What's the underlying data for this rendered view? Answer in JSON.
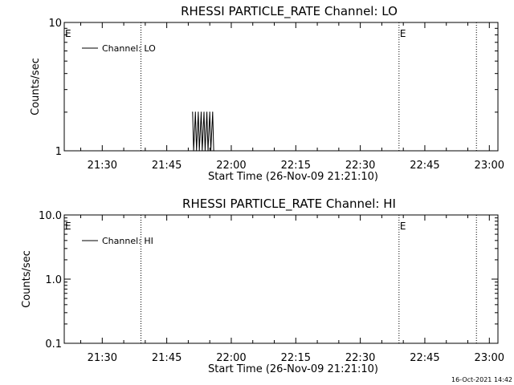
{
  "chart_data": [
    {
      "type": "line",
      "title": "RHESSI PARTICLE_RATE Channel: LO",
      "xlabel": "Start Time (26-Nov-09 21:21:10)",
      "ylabel": "Counts/sec",
      "yscale": "log",
      "ylim": [
        1,
        10
      ],
      "ytick_labels": [
        "10",
        "1"
      ],
      "xlim": [
        "21:21:10",
        "23:02:00"
      ],
      "xtick_labels": [
        "21:30",
        "21:45",
        "22:00",
        "22:15",
        "22:30",
        "22:45",
        "23:00"
      ],
      "legend": {
        "label": "Channel: LO",
        "position": "top-left"
      },
      "event_lines": [
        "21:39",
        "22:39",
        "22:57"
      ],
      "event_markers": [
        {
          "label": "E",
          "time": "21:21:10"
        },
        {
          "label": "E",
          "time": "22:39"
        }
      ],
      "series": [
        {
          "name": "Channel: LO",
          "x": [
            "21:51:00",
            "21:51:15",
            "21:51:40",
            "21:51:55",
            "21:52:20",
            "21:52:35",
            "21:53:00",
            "21:53:15",
            "21:53:40",
            "21:53:55",
            "21:54:20",
            "21:54:35",
            "21:55:00",
            "21:55:15",
            "21:55:40",
            "21:55:55"
          ],
          "y": [
            2,
            1,
            2,
            1,
            2,
            1,
            2,
            1,
            2,
            1,
            2,
            1,
            2,
            1,
            2,
            1
          ]
        }
      ]
    },
    {
      "type": "line",
      "title": "RHESSI PARTICLE_RATE Channel: HI",
      "xlabel": "Start Time (26-Nov-09 21:21:10)",
      "ylabel": "Counts/sec",
      "yscale": "log",
      "ylim": [
        0.1,
        10
      ],
      "ytick_labels": [
        "10.0",
        "1.0",
        "0.1"
      ],
      "xlim": [
        "21:21:10",
        "23:02:00"
      ],
      "xtick_labels": [
        "21:30",
        "21:45",
        "22:00",
        "22:15",
        "22:30",
        "22:45",
        "23:00"
      ],
      "legend": {
        "label": "Channel: HI",
        "position": "top-left"
      },
      "event_lines": [
        "21:39",
        "22:39",
        "22:57"
      ],
      "event_markers": [
        {
          "label": "E",
          "time": "21:21:10"
        },
        {
          "label": "E",
          "time": "22:39"
        }
      ],
      "series": [
        {
          "name": "Channel: HI",
          "x": [],
          "y": []
        }
      ]
    }
  ],
  "footer": {
    "timestamp": "16-Oct-2021 14:42"
  }
}
